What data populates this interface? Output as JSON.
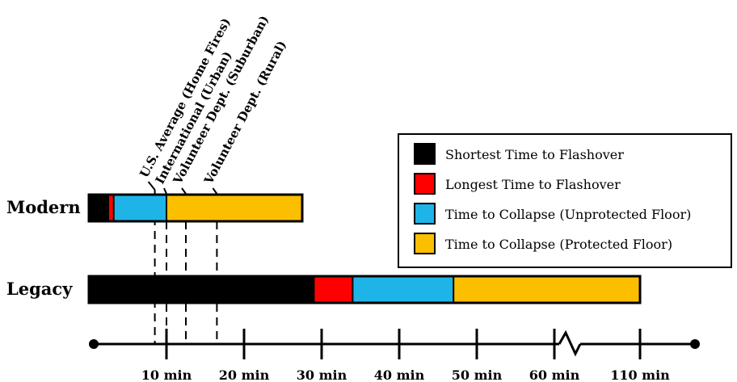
{
  "chart_data": {
    "type": "bar",
    "orientation": "horizontal-timeline",
    "unit": "min",
    "axis_tick_labels": [
      "10 min",
      "20 min",
      "30 min",
      "40 min",
      "50 min",
      "60 min",
      "110 min"
    ],
    "axis_ticks": [
      10,
      20,
      30,
      40,
      50,
      60,
      110
    ],
    "axis_break": "between 60 min and 110 min",
    "rows": [
      {
        "label": "Modern",
        "segments": [
          {
            "name": "Shortest Time to Flashover",
            "start": 0,
            "end": 2.5,
            "color": "#000000"
          },
          {
            "name": "Longest Time to Flashover",
            "start": 2.5,
            "end": 3.2,
            "color": "#ff0000"
          },
          {
            "name": "Time to Collapse (Unprotected Floor)",
            "start": 3.2,
            "end": 10,
            "color": "#1fb4e8"
          },
          {
            "name": "Time to Collapse (Protected Floor)",
            "start": 10,
            "end": 27.5,
            "color": "#fbbf00"
          }
        ]
      },
      {
        "label": "Legacy",
        "segments": [
          {
            "name": "Shortest Time to Flashover",
            "start": 0,
            "end": 29,
            "color": "#000000"
          },
          {
            "name": "Longest Time to Flashover",
            "start": 29,
            "end": 34,
            "color": "#ff0000"
          },
          {
            "name": "Time to Collapse (Unprotected Floor)",
            "start": 34,
            "end": 47,
            "color": "#1fb4e8"
          },
          {
            "name": "Time to Collapse (Protected Floor)",
            "start": 47,
            "end": 110,
            "color": "#fbbf00"
          }
        ]
      }
    ],
    "response_times": [
      {
        "label": "U.S. Average (Home Fires)",
        "value": 8.5
      },
      {
        "label": "International (Urban)",
        "value": 10
      },
      {
        "label": "Volunteer Dept. (Suburban)",
        "value": 12.5
      },
      {
        "label": "Volunteer Dept. (Rural)",
        "value": 16.5
      }
    ],
    "legend": {
      "placement": "right",
      "entries": [
        {
          "label": "Shortest Time to Flashover",
          "color": "#000000"
        },
        {
          "label": "Longest Time to Flashover",
          "color": "#ff0000"
        },
        {
          "label": "Time to Collapse (Unprotected Floor)",
          "color": "#1fb4e8"
        },
        {
          "label": "Time to Collapse (Protected Floor)",
          "color": "#fbbf00"
        }
      ]
    }
  }
}
